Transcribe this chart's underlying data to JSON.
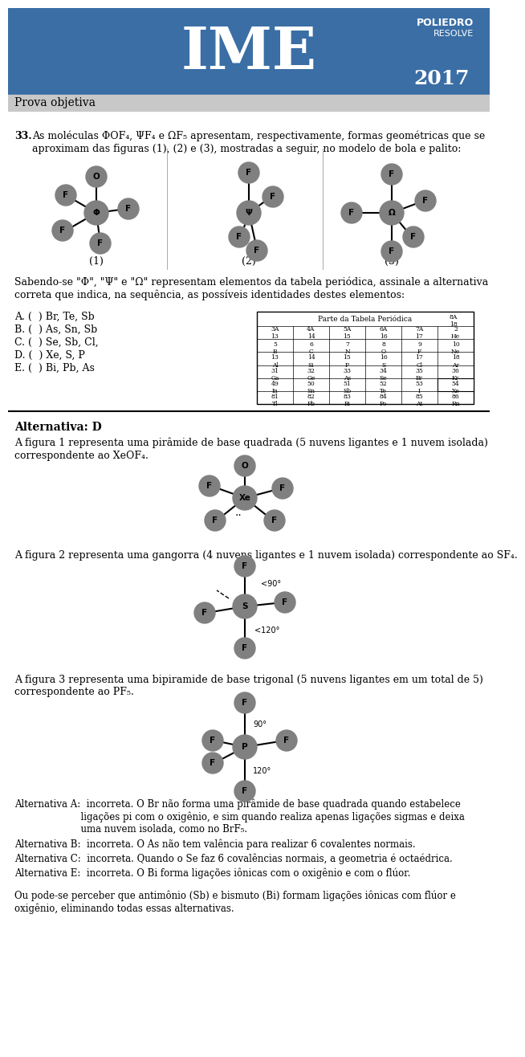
{
  "title": "IME",
  "year": "2017",
  "poliedro": "POLIEDRO\nRESOLVE",
  "prova_label": "Prova objetiva",
  "header_bg": "#3a6ea5",
  "header_text_color": "#ffffff",
  "prova_bg": "#d0d0d0",
  "question_number": "33.",
  "question_text": "As moléculas ΦOF₄, ΨF₄ e ΩF₅ apresentam, respectivamente, formas geométricas que se aproximam das figuras (1), (2) e (3), mostradas a seguir, no modelo de bola e palito:",
  "fig_labels": [
    "(1)",
    "(2)",
    "(3)"
  ],
  "sabing_text": "Sabendo-se \"Φ\", \"Ψ\" e \"Ω\" representam elementos da tabela periódica, assinale a alternativa\ncorreta que indica, na sequência, as possíveis identidades destes elementos:",
  "options": [
    "A. (  ) Br, Te, Sb",
    "B. (  ) As, Sn, Sb",
    "C. (  ) Se, Sb, Cl,",
    "D. (  ) Xe, S, P",
    "E. (  ) Bi, Pb, As"
  ],
  "alternativa_label": "Alternativa: D",
  "fig1_text": "A figura 1 representa uma pirâmide de base quadrada (5 nuvens ligantes e 1 nuvem isolada)\ncorrespondente ao XeOF₄.",
  "fig2_text": "A figura 2 representa uma gangorra (4 nuvens ligantes e 1 nuvem isolada) correspondente ao SF₄.",
  "fig3_text": "A figura 3 representa uma bipiramide de base trigonal (5 nuvens ligantes em um total de 5)\ncorrespondente ao PF₅.",
  "alt_a": "Alternativa A:  incorreta. O Br não forma uma pirâmide de base quadrada quando estabelece\n                      ligações pi com o oxigênio, e sim quando realiza apenas ligações sigmas e deixa\n                      uma nuvem isolada, como no BrF₅.",
  "alt_b": "Alternativa B:  incorreta. O As não tem valência para realizar 6 covalentes normais.",
  "alt_c": "Alternativa C:  incorreta. Quando o Se faz 6 covalências normais, a geometria é octaédrica.",
  "alt_e": "Alternativa E:  incorreta. O Bi forma ligações iônicas com o oxigênio e com o flúor.",
  "final_text": "Ou pode-se perceber que antimônio (Sb) e bismuto (Bi) formam ligações iônicas com flúor e\noxigênio, eliminando todas essas alternativas.",
  "separator_color": "#000000",
  "body_bg": "#ffffff",
  "text_color": "#000000",
  "atom_color": "#808080",
  "atom_text_color": "#000000"
}
